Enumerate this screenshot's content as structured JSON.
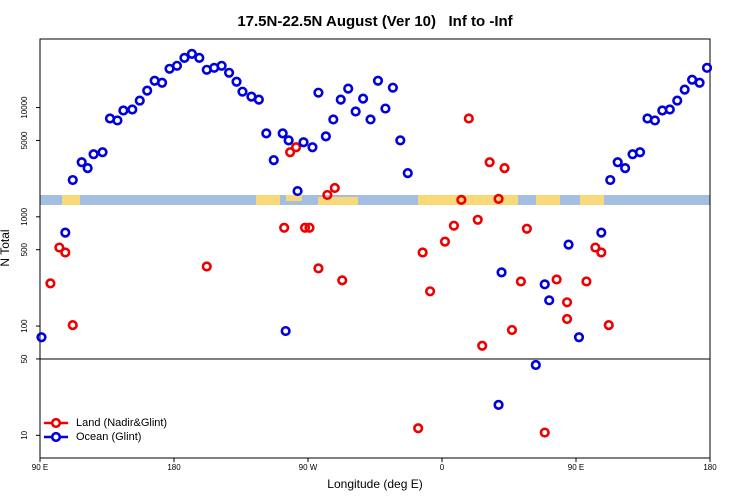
{
  "chart_data": {
    "type": "scatter",
    "title": "17.5N-22.5N August (Ver 10)   Inf to -Inf",
    "x_label": "Longitude (deg E)",
    "y_label": "N Total",
    "xlim": [
      90,
      540
    ],
    "xticks": [
      {
        "value": 90,
        "label": "90 E"
      },
      {
        "value": 180,
        "label": "180"
      },
      {
        "value": 270,
        "label": "90 W"
      },
      {
        "value": 360,
        "label": "0"
      },
      {
        "value": 450,
        "label": "90 E"
      },
      {
        "value": 540,
        "label": "180"
      }
    ],
    "ylim": [
      6.2,
      42400
    ],
    "yticks": [
      10,
      50,
      100,
      500,
      1000,
      5000,
      10000
    ],
    "y_scale": "log",
    "hline": 50,
    "legend": "bottom-left",
    "series": [
      {
        "name": "Land (Nadir&Glint)",
        "color": "#ee0000",
        "x": [
          97,
          103,
          107,
          112,
          202,
          254,
          258,
          262,
          268,
          271,
          277,
          283,
          288,
          293,
          344,
          347,
          352,
          362,
          368,
          373,
          378,
          384,
          387,
          392,
          398,
          402,
          407,
          413,
          417,
          429,
          437,
          444,
          444,
          457,
          463,
          467,
          472
        ],
        "values": [
          246,
          523,
          471,
          102,
          351,
          794,
          3900,
          4330,
          794,
          794,
          337,
          1585,
          1835,
          262,
          11.6,
          471,
          208,
          593,
          829,
          1428,
          7940,
          939,
          66,
          3160,
          1458,
          2790,
          92,
          256,
          778,
          10.6,
          267,
          165,
          116,
          256,
          523,
          471,
          102
        ]
      },
      {
        "name": "Ocean (Glint)",
        "color": "#0000dd",
        "x": [
          91,
          107,
          112,
          118,
          122,
          126,
          132,
          137,
          142,
          146,
          152,
          157,
          162,
          167,
          172,
          177,
          182,
          187,
          192,
          197,
          202,
          207,
          212,
          217,
          222,
          226,
          232,
          237,
          242,
          247,
          253,
          257,
          263,
          267,
          273,
          277,
          282,
          287,
          292,
          297,
          302,
          307,
          312,
          317,
          322,
          327,
          332,
          337,
          255,
          400,
          398,
          423,
          429,
          432,
          445,
          452,
          467,
          473,
          478,
          483,
          488,
          493,
          498,
          503,
          508,
          513,
          518,
          523,
          528,
          533,
          538
        ],
        "values": [
          79,
          716,
          2170,
          3160,
          2790,
          3740,
          3900,
          7940,
          7620,
          9390,
          9590,
          11580,
          14280,
          17600,
          16870,
          22630,
          24100,
          28500,
          30970,
          28500,
          22150,
          23100,
          24100,
          20800,
          17230,
          13970,
          12590,
          11820,
          5800,
          3300,
          5800,
          5010,
          1720,
          4810,
          4330,
          13680,
          5450,
          7780,
          11820,
          14890,
          9200,
          12070,
          7780,
          17600,
          9790,
          15200,
          5010,
          2510,
          90,
          310,
          19,
          44,
          241,
          172,
          556,
          79,
          716,
          2170,
          3160,
          2790,
          3740,
          3900,
          7940,
          7620,
          9390,
          9590,
          11580,
          14590,
          17980,
          16870,
          23100
        ]
      }
    ]
  }
}
